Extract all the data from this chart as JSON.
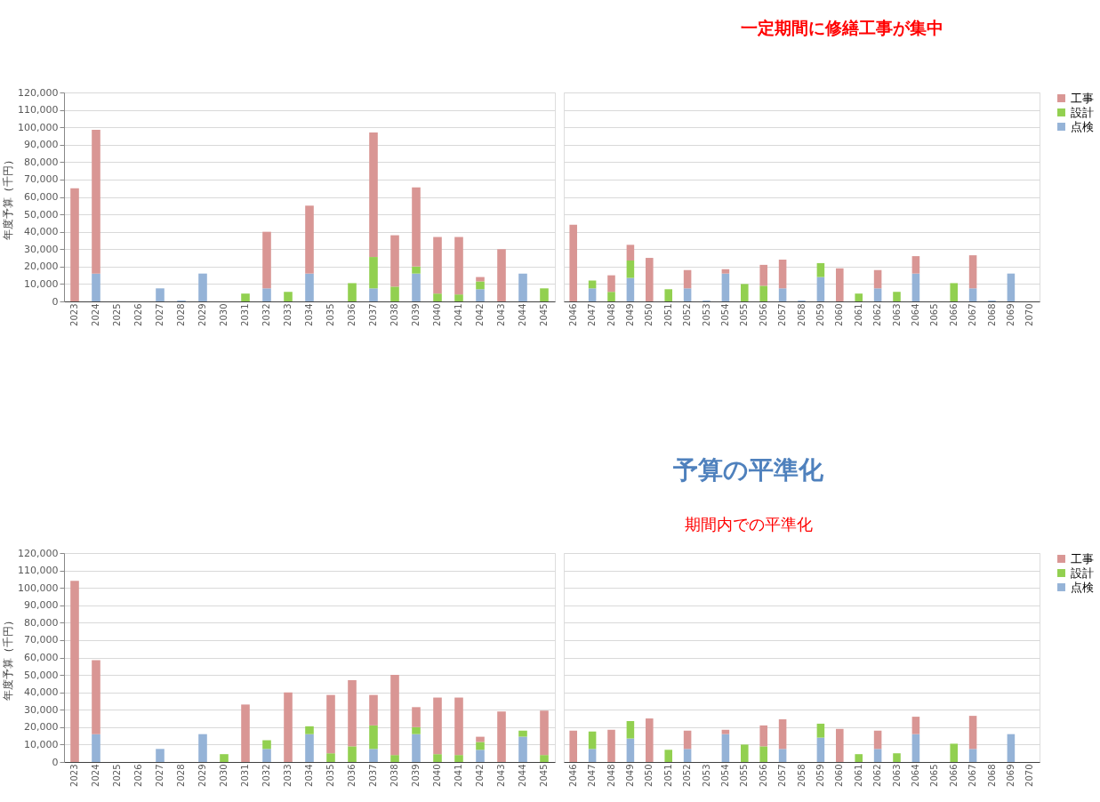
{
  "chart_data": [
    {
      "type": "bar",
      "stacked": true,
      "ylabel": "年度予算（千円）",
      "ylim": [
        0,
        120000
      ],
      "grid": "y",
      "yticks": [
        {
          "value": 0,
          "label": "0"
        },
        {
          "value": 10000,
          "label": "10,000"
        },
        {
          "value": 20000,
          "label": "20,000"
        },
        {
          "value": 30000,
          "label": "30,000"
        },
        {
          "value": 40000,
          "label": "40,000"
        },
        {
          "value": 50000,
          "label": "50,000"
        },
        {
          "value": 60000,
          "label": "60,000"
        },
        {
          "value": 70000,
          "label": "70,000"
        },
        {
          "value": 80000,
          "label": "80,000"
        },
        {
          "value": 90000,
          "label": "90,000"
        },
        {
          "value": 100000,
          "label": "100,000"
        },
        {
          "value": 110000,
          "label": "110,000"
        },
        {
          "value": 120000,
          "label": "120,000"
        }
      ],
      "categories": [
        "2023",
        "2024",
        "2025",
        "2026",
        "2027",
        "2028",
        "2029",
        "2030",
        "2031",
        "2032",
        "2033",
        "2034",
        "2035",
        "2036",
        "2037",
        "2038",
        "2039",
        "2040",
        "2041",
        "2042",
        "2043",
        "2044",
        "2045"
      ],
      "series": [
        {
          "color": "#95b3d7",
          "values": [
            null,
            16000,
            null,
            null,
            7500,
            500,
            16000,
            null,
            null,
            7500,
            null,
            16000,
            null,
            null,
            7500,
            null,
            16000,
            null,
            null,
            7000,
            null,
            16000,
            null
          ]
        },
        {
          "color": "#92d050",
          "values": [
            null,
            null,
            null,
            null,
            null,
            null,
            null,
            null,
            4500,
            null,
            5500,
            null,
            null,
            10500,
            18000,
            8500,
            4000,
            4500,
            4000,
            4500,
            null,
            null,
            7500
          ]
        },
        {
          "color": "#d99694",
          "values": [
            65000,
            82500,
            null,
            null,
            null,
            null,
            null,
            null,
            null,
            32500,
            null,
            39000,
            null,
            null,
            71500,
            29500,
            45500,
            32500,
            33000,
            2500,
            30000,
            null,
            null
          ]
        }
      ]
    },
    {
      "type": "bar",
      "stacked": true,
      "ylim": [
        0,
        120000
      ],
      "grid": "y",
      "tick_labels": "x",
      "legend": "right",
      "annotations": [
        "一定期間に修繕工事が集中"
      ],
      "yticks": [
        0,
        10000,
        20000,
        30000,
        40000,
        50000,
        60000,
        70000,
        80000,
        90000,
        100000,
        110000,
        120000
      ],
      "categories": [
        "2046",
        "2047",
        "2048",
        "2049",
        "2050",
        "2051",
        "2052",
        "2053",
        "2054",
        "2055",
        "2056",
        "2057",
        "2058",
        "2059",
        "2060",
        "2061",
        "2062",
        "2063",
        "2064",
        "2065",
        "2066",
        "2067",
        "2068",
        "2069",
        "2070"
      ],
      "series": [
        {
          "name": "点検",
          "color": "#95b3d7",
          "values": [
            null,
            7500,
            null,
            13500,
            null,
            null,
            7500,
            500,
            16000,
            null,
            null,
            7500,
            500,
            14000,
            null,
            null,
            7500,
            null,
            16000,
            null,
            null,
            7500,
            500,
            16000,
            null
          ]
        },
        {
          "name": "設計",
          "color": "#92d050",
          "values": [
            null,
            4500,
            5500,
            10000,
            null,
            7000,
            null,
            null,
            null,
            10000,
            9000,
            null,
            null,
            8000,
            null,
            4500,
            null,
            5500,
            null,
            null,
            10500,
            null,
            null,
            null,
            null
          ]
        },
        {
          "name": "工事",
          "color": "#d99694",
          "values": [
            44000,
            null,
            9500,
            9000,
            25000,
            null,
            10500,
            null,
            2500,
            null,
            12000,
            16500,
            null,
            null,
            19000,
            null,
            10500,
            null,
            10000,
            null,
            null,
            19000,
            null,
            null,
            null
          ]
        }
      ]
    },
    {
      "type": "bar",
      "stacked": true,
      "ylabel": "年度予算（千円）",
      "ylim": [
        0,
        120000
      ],
      "grid": "y",
      "yticks": [
        {
          "value": 0,
          "label": "0"
        },
        {
          "value": 10000,
          "label": "10,000"
        },
        {
          "value": 20000,
          "label": "20,000"
        },
        {
          "value": 30000,
          "label": "30,000"
        },
        {
          "value": 40000,
          "label": "40,000"
        },
        {
          "value": 50000,
          "label": "50,000"
        },
        {
          "value": 60000,
          "label": "60,000"
        },
        {
          "value": 70000,
          "label": "70,000"
        },
        {
          "value": 80000,
          "label": "80,000"
        },
        {
          "value": 90000,
          "label": "90,000"
        },
        {
          "value": 100000,
          "label": "100,000"
        },
        {
          "value": 110000,
          "label": "110,000"
        },
        {
          "value": 120000,
          "label": "120,000"
        }
      ],
      "categories": [
        "2023",
        "2024",
        "2025",
        "2026",
        "2027",
        "2028",
        "2029",
        "2030",
        "2031",
        "2032",
        "2033",
        "2034",
        "2035",
        "2036",
        "2037",
        "2038",
        "2039",
        "2040",
        "2041",
        "2042",
        "2043",
        "2044",
        "2045"
      ],
      "series": [
        {
          "color": "#95b3d7",
          "values": [
            null,
            16000,
            null,
            null,
            7500,
            null,
            16000,
            null,
            null,
            7500,
            null,
            16000,
            null,
            null,
            7500,
            null,
            16000,
            null,
            null,
            7000,
            null,
            14500,
            null
          ]
        },
        {
          "color": "#92d050",
          "values": [
            null,
            null,
            null,
            null,
            null,
            null,
            null,
            4500,
            null,
            5000,
            null,
            4500,
            5000,
            9000,
            13500,
            4000,
            4000,
            4500,
            4000,
            4500,
            null,
            3500,
            4000
          ]
        },
        {
          "color": "#d99694",
          "values": [
            104000,
            42500,
            null,
            null,
            null,
            null,
            null,
            null,
            33000,
            null,
            40000,
            null,
            33500,
            38000,
            17500,
            46000,
            11500,
            32500,
            33000,
            3000,
            29000,
            null,
            25500
          ]
        }
      ]
    },
    {
      "type": "bar",
      "stacked": true,
      "ylim": [
        0,
        120000
      ],
      "grid": "y",
      "tick_labels": "x",
      "legend": "right",
      "annotations": [
        "予算の平準化",
        "期間内での平準化"
      ],
      "yticks": [
        0,
        10000,
        20000,
        30000,
        40000,
        50000,
        60000,
        70000,
        80000,
        90000,
        100000,
        110000,
        120000
      ],
      "categories": [
        "2046",
        "2047",
        "2048",
        "2049",
        "2050",
        "2051",
        "2052",
        "2053",
        "2054",
        "2055",
        "2056",
        "2057",
        "2058",
        "2059",
        "2060",
        "2061",
        "2062",
        "2063",
        "2064",
        "2065",
        "2066",
        "2067",
        "2068",
        "2069",
        "2070"
      ],
      "series": [
        {
          "name": "点検",
          "color": "#95b3d7",
          "values": [
            null,
            7500,
            null,
            13500,
            null,
            null,
            7500,
            null,
            16000,
            null,
            null,
            7500,
            null,
            14000,
            null,
            null,
            7500,
            null,
            16000,
            null,
            null,
            7500,
            null,
            16000,
            null
          ]
        },
        {
          "name": "設計",
          "color": "#92d050",
          "values": [
            null,
            10000,
            null,
            10000,
            null,
            7000,
            null,
            null,
            null,
            10000,
            9000,
            null,
            null,
            8000,
            null,
            4500,
            null,
            5000,
            null,
            null,
            10500,
            null,
            null,
            null,
            null
          ]
        },
        {
          "name": "工事",
          "color": "#d99694",
          "values": [
            18000,
            null,
            18500,
            null,
            25000,
            null,
            10500,
            null,
            2500,
            null,
            12000,
            17000,
            null,
            null,
            19000,
            null,
            10500,
            null,
            10000,
            null,
            null,
            19000,
            null,
            null,
            null
          ]
        }
      ]
    }
  ]
}
